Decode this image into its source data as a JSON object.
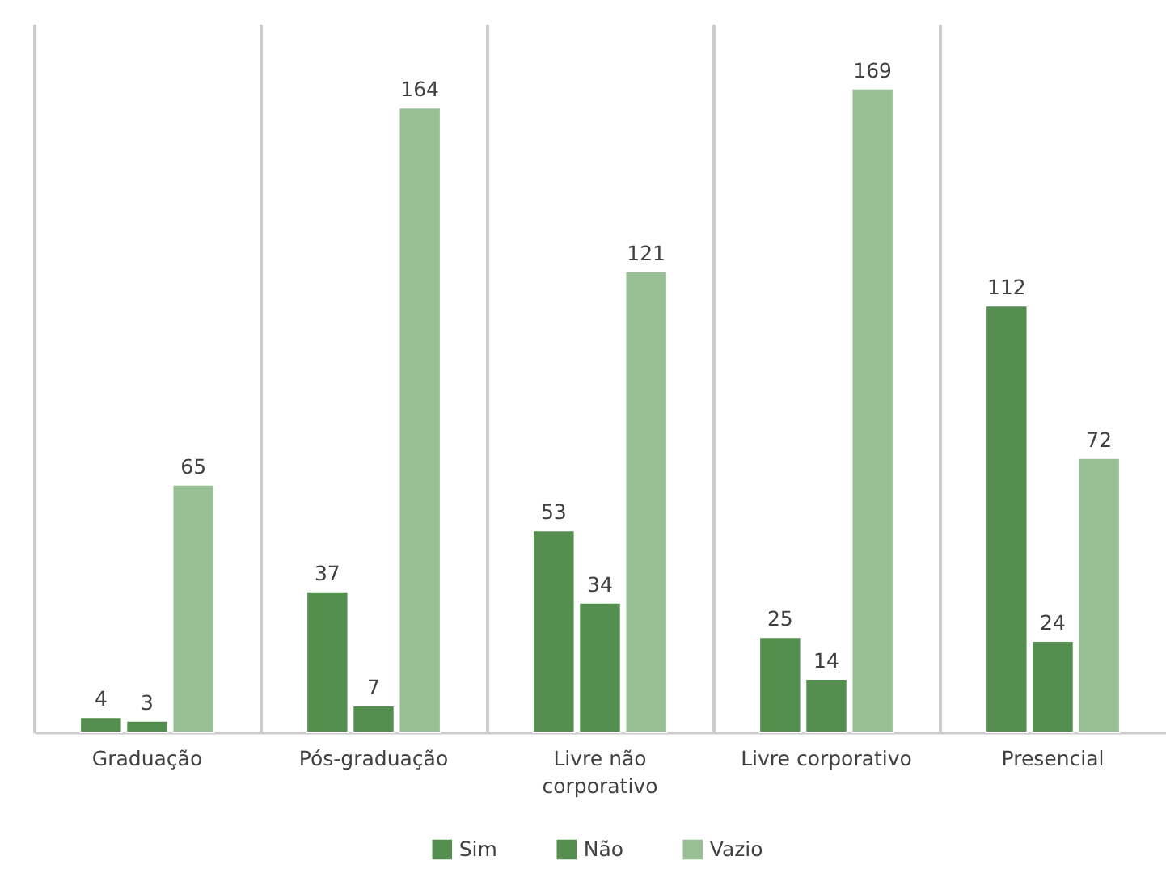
{
  "chart_data": {
    "type": "bar",
    "categories": [
      "Graduação",
      "Pós-graduação",
      "Livre não corporativo",
      "Livre corporativo",
      "Presencial"
    ],
    "series": [
      {
        "name": "Sim",
        "color": "#548f4f",
        "values": [
          4,
          37,
          53,
          25,
          112
        ]
      },
      {
        "name": "Não",
        "color": "#548f4f",
        "values": [
          3,
          7,
          34,
          14,
          24
        ]
      },
      {
        "name": "Vazio",
        "color": "#99bf95",
        "values": [
          65,
          164,
          121,
          169,
          72
        ]
      }
    ],
    "data_labels": true,
    "grid": "x",
    "legend": "bottom"
  }
}
